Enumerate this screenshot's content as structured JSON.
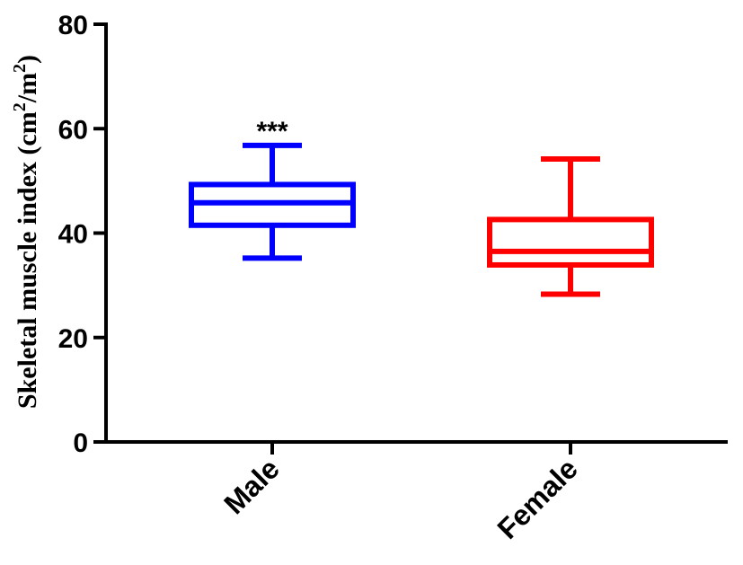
{
  "chart_data": {
    "type": "box",
    "ylabel": "Skeletal muscle index (cm²/m²)",
    "ylabel_parts": {
      "main": "Skeletal muscle index (cm",
      "sup1": "2",
      "mid": "/m",
      "sup2": "2",
      "end": ")"
    },
    "ylim": [
      0,
      80
    ],
    "yticks": [
      0,
      20,
      40,
      60,
      80
    ],
    "yticks_text": [
      "0",
      "20",
      "40",
      "60",
      "80"
    ],
    "categories": [
      "Male",
      "Female"
    ],
    "grid": false,
    "series": [
      {
        "name": "Male",
        "color": "#0000ff",
        "min": 35.2,
        "q1": 41.5,
        "median": 45.8,
        "q3": 49.3,
        "max": 56.8,
        "annotation": "***"
      },
      {
        "name": "Female",
        "color": "#ff0000",
        "min": 28.3,
        "q1": 33.9,
        "median": 36.5,
        "q3": 42.6,
        "max": 54.2,
        "annotation": ""
      }
    ]
  }
}
